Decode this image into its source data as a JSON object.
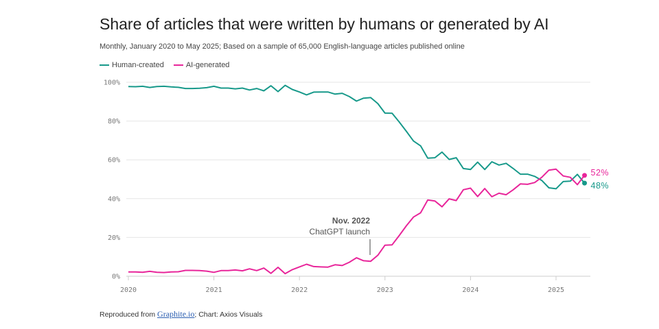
{
  "title": "Share of articles that were written by humans or generated by AI",
  "subtitle": "Monthly, January 2020 to May 2025; Based on a sample of 65,000 English-language articles published online",
  "footer": {
    "prefix": "Reproduced from ",
    "link": "Graphite.io",
    "suffix": "; Chart: Axios Visuals"
  },
  "colors": {
    "human": "#17998a",
    "ai": "#e8259a",
    "grid": "#e6e6e6",
    "text": "#222222"
  },
  "chart_data": {
    "type": "line",
    "title": "Share of articles that were written by humans or generated by AI",
    "x_start": "2020-01",
    "x_end": "2025-05",
    "x_frequency": "monthly",
    "x_ticks": [
      "2020",
      "2021",
      "2022",
      "2023",
      "2024",
      "2025"
    ],
    "y_ticks": [
      "0%",
      "20%",
      "40%",
      "60%",
      "80%",
      "100%"
    ],
    "ylim": [
      0,
      100
    ],
    "grid": true,
    "legend": "top-left",
    "series": [
      {
        "name": "Human-created",
        "color": "#17998a",
        "end_label": "48%",
        "values": [
          97.8,
          97.7,
          97.9,
          97.3,
          97.8,
          97.9,
          97.6,
          97.4,
          96.8,
          96.8,
          96.9,
          97.2,
          97.9,
          97.0,
          97.0,
          96.6,
          97.0,
          96.0,
          96.8,
          95.6,
          98.2,
          95.2,
          98.4,
          96.3,
          95.0,
          93.5,
          94.9,
          95.0,
          95.0,
          93.9,
          94.3,
          92.6,
          90.3,
          91.8,
          92.1,
          89.0,
          84.1,
          84.0,
          79.5,
          74.7,
          69.7,
          67.2,
          60.9,
          61.1,
          64.0,
          60.2,
          61.1,
          55.5,
          55.0,
          58.8,
          55.0,
          59.0,
          57.3,
          58.2,
          55.5,
          52.6,
          52.6,
          51.5,
          49.4,
          45.6,
          45.1,
          48.8,
          49.0,
          52.5,
          48.0
        ]
      },
      {
        "name": "AI-generated",
        "color": "#e8259a",
        "end_label": "52%",
        "values": [
          2.2,
          2.2,
          2.0,
          2.5,
          2.0,
          1.9,
          2.2,
          2.3,
          3.0,
          3.0,
          2.9,
          2.6,
          2.0,
          2.9,
          2.9,
          3.2,
          2.8,
          3.8,
          2.9,
          4.2,
          1.5,
          4.6,
          1.3,
          3.4,
          4.8,
          6.2,
          5.0,
          4.8,
          4.7,
          5.9,
          5.5,
          7.2,
          9.5,
          8.0,
          7.7,
          10.8,
          16.0,
          16.2,
          21.0,
          26.0,
          30.5,
          32.7,
          39.3,
          38.8,
          35.8,
          39.9,
          39.0,
          44.6,
          45.4,
          41.1,
          45.2,
          41.0,
          42.8,
          42.0,
          44.6,
          47.6,
          47.4,
          48.3,
          51.0,
          54.7,
          55.2,
          51.7,
          51.0,
          47.2,
          52.0
        ]
      }
    ],
    "annotation": {
      "title": "Nov. 2022",
      "text": "ChatGPT launch",
      "x": "2022-11"
    }
  }
}
